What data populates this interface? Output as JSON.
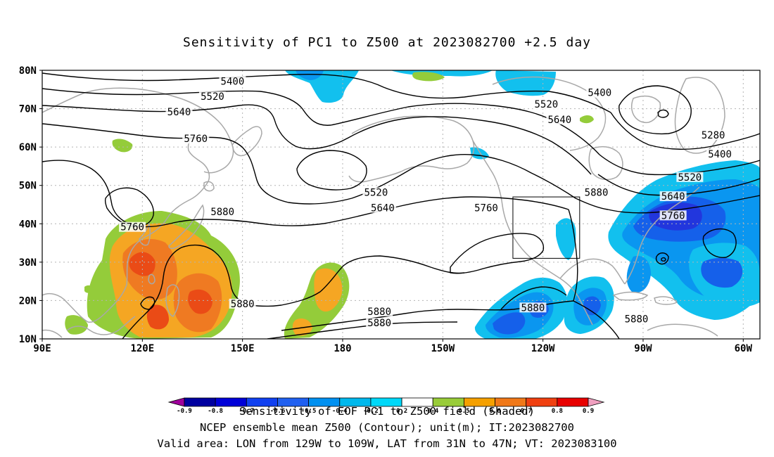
{
  "title": "Sensitivity of PC1 to Z500 at 2023082700 +2.5 day",
  "colors": {
    "land": "#a8a8a8",
    "contour": "#000000",
    "grid": "#b4b4b4",
    "positive_sensitivity": [
      "#94cc3a",
      "#f5a623",
      "#ef7a22",
      "#ea4b16"
    ],
    "negative_sensitivity": [
      "#12c0ee",
      "#0a96f0",
      "#1560ea",
      "#2236dd"
    ]
  },
  "map": {
    "projection": "cylindrical-equidistant",
    "lon_range": [
      90,
      305
    ],
    "lat_range": [
      10,
      80
    ],
    "lat_labels": [
      "80N",
      "70N",
      "60N",
      "50N",
      "40N",
      "30N",
      "20N",
      "10N"
    ],
    "lon_labels": [
      "90E",
      "120E",
      "150E",
      "180",
      "150W",
      "120W",
      "90W",
      "60W"
    ],
    "gridlines": "dotted",
    "contour_labels": [
      {
        "text": "5400",
        "lon": 147,
        "lat": 77
      },
      {
        "text": "5520",
        "lon": 141,
        "lat": 73
      },
      {
        "text": "5640",
        "lon": 131,
        "lat": 69
      },
      {
        "text": "5760",
        "lon": 136,
        "lat": 62
      },
      {
        "text": "5880",
        "lon": 144,
        "lat": 43
      },
      {
        "text": "5760",
        "lon": 117,
        "lat": 39
      },
      {
        "text": "5880",
        "lon": 150,
        "lat": 19
      },
      {
        "text": "5400",
        "lon": 257,
        "lat": 74
      },
      {
        "text": "5520",
        "lon": 241,
        "lat": 71
      },
      {
        "text": "5640",
        "lon": 245,
        "lat": 67
      },
      {
        "text": "5520",
        "lon": 190,
        "lat": 48
      },
      {
        "text": "5640",
        "lon": 192,
        "lat": 44
      },
      {
        "text": "5760",
        "lon": 223,
        "lat": 44
      },
      {
        "text": "5880",
        "lon": 256,
        "lat": 48
      },
      {
        "text": "5280",
        "lon": 291,
        "lat": 63
      },
      {
        "text": "5400",
        "lon": 293,
        "lat": 58
      },
      {
        "text": "5520",
        "lon": 284,
        "lat": 52
      },
      {
        "text": "5640",
        "lon": 279,
        "lat": 47
      },
      {
        "text": "5760",
        "lon": 279,
        "lat": 42
      },
      {
        "text": "5880",
        "lon": 191,
        "lat": 17
      },
      {
        "text": "5880",
        "lon": 191,
        "lat": 14
      },
      {
        "text": "5880",
        "lon": 237,
        "lat": 18
      },
      {
        "text": "5880",
        "lon": 268,
        "lat": 15
      }
    ],
    "valid_area": {
      "lon_min": -129,
      "lon_max": -109,
      "lat_min": 31,
      "lat_max": 47
    }
  },
  "colorbar": {
    "ticks": [
      "-0.9",
      "-0.8",
      "-0.7",
      "-0.6",
      "-0.5",
      "-0.4",
      "-0.2",
      "0.2",
      "0.4",
      "0.5",
      "0.6",
      "0.7",
      "0.8",
      "0.9"
    ],
    "colors": [
      "#a0009c",
      "#0000a0",
      "#0000d8",
      "#1040f0",
      "#2060f0",
      "#0090f0",
      "#00b8ec",
      "#00d8f8",
      "#ffffff",
      "#98cc38",
      "#f5a000",
      "#f07818",
      "#f04010",
      "#e80000",
      "#f0a0c0"
    ]
  },
  "captions": {
    "line1": "Sensitivity of EOF PC1 to Z500 field (Shaded)",
    "line2": "NCEP ensemble mean Z500 (Contour); unit(m); IT:2023082700",
    "line3": "Valid area: LON from 129W to 109W, LAT from 31N to 47N; VT: 2023083100"
  }
}
